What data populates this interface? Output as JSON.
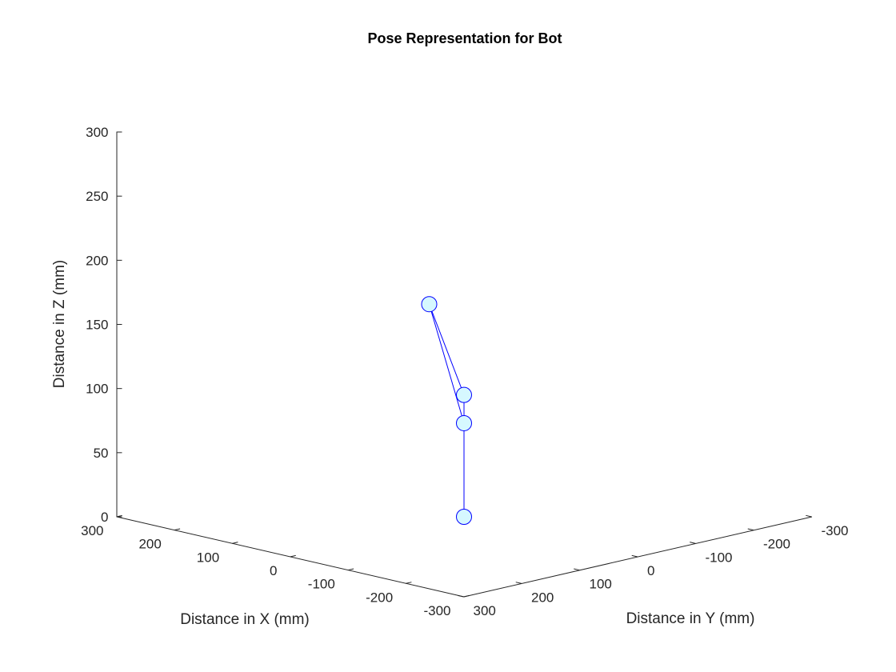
{
  "chart_data": {
    "type": "line",
    "title": "Pose Representation for Bot",
    "xlabel": "Distance in X (mm)",
    "ylabel": "Distance in Y (mm)",
    "zlabel": "Distance in Z (mm)",
    "xlim": [
      -300,
      300
    ],
    "ylim": [
      -300,
      300
    ],
    "zlim": [
      0,
      300
    ],
    "xticks": [
      300,
      200,
      100,
      0,
      -100,
      -200,
      -300
    ],
    "yticks": [
      300,
      200,
      100,
      0,
      -100,
      -200,
      -300
    ],
    "zticks": [
      0,
      50,
      100,
      150,
      200,
      250,
      300
    ],
    "grid": false,
    "series": [
      {
        "x": [
          0,
          0,
          0,
          0
        ],
        "y": [
          0,
          0,
          60,
          0
        ],
        "z": [
          0,
          95,
          172,
          73
        ],
        "line_color": "#0000ff",
        "marker": "circle",
        "marker_face_color": "#d6f8ff",
        "marker_edge_color": "#0000ff"
      }
    ]
  }
}
